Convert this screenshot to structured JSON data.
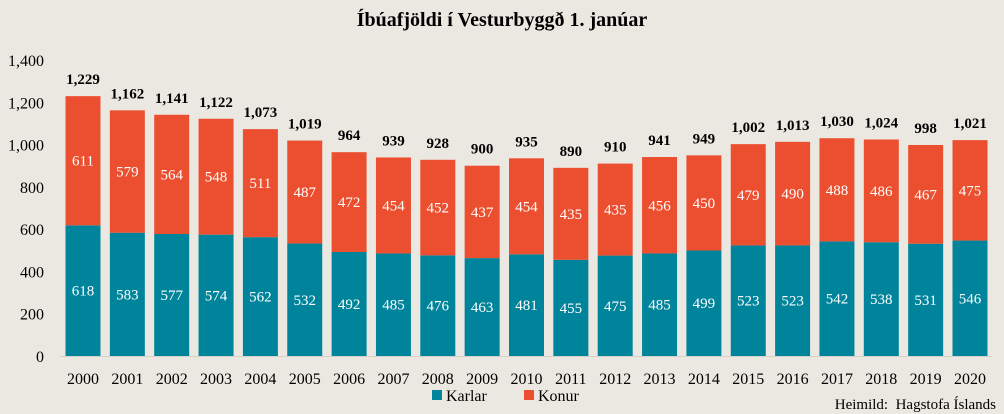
{
  "chart_data": {
    "type": "bar",
    "stacked": true,
    "title": "Íbúafjöldi í Vesturbyggð 1. janúar",
    "xlabel": "",
    "ylabel": "",
    "ylim": [
      0,
      1400
    ],
    "yticks": [
      "0",
      "200",
      "400",
      "600",
      "800",
      "1,000",
      "1,200",
      "1,400"
    ],
    "ytick_values": [
      0,
      200,
      400,
      600,
      800,
      1000,
      1200,
      1400
    ],
    "grid": false,
    "legend_position": "bottom-center",
    "categories": [
      "2000",
      "2001",
      "2002",
      "2003",
      "2004",
      "2005",
      "2006",
      "2007",
      "2008",
      "2009",
      "2010",
      "2011",
      "2012",
      "2013",
      "2014",
      "2015",
      "2016",
      "2017",
      "2018",
      "2019",
      "2020"
    ],
    "series": [
      {
        "name": "Karlar",
        "color": "#00849b",
        "values": [
          618,
          583,
          577,
          574,
          562,
          532,
          492,
          485,
          476,
          463,
          481,
          455,
          475,
          485,
          499,
          523,
          523,
          542,
          538,
          531,
          546
        ]
      },
      {
        "name": "Konur",
        "color": "#ec4f2f",
        "values": [
          611,
          579,
          564,
          548,
          511,
          487,
          472,
          454,
          452,
          437,
          454,
          435,
          435,
          456,
          450,
          479,
          490,
          488,
          486,
          467,
          475
        ]
      }
    ],
    "totals": [
      "1,229",
      "1,162",
      "1,141",
      "1,122",
      "1,073",
      "1,019",
      "964",
      "939",
      "928",
      "900",
      "935",
      "890",
      "910",
      "941",
      "949",
      "1,002",
      "1,013",
      "1,030",
      "1,024",
      "998",
      "1,021"
    ],
    "source": "Heimild:  Hagstofa Íslands"
  }
}
